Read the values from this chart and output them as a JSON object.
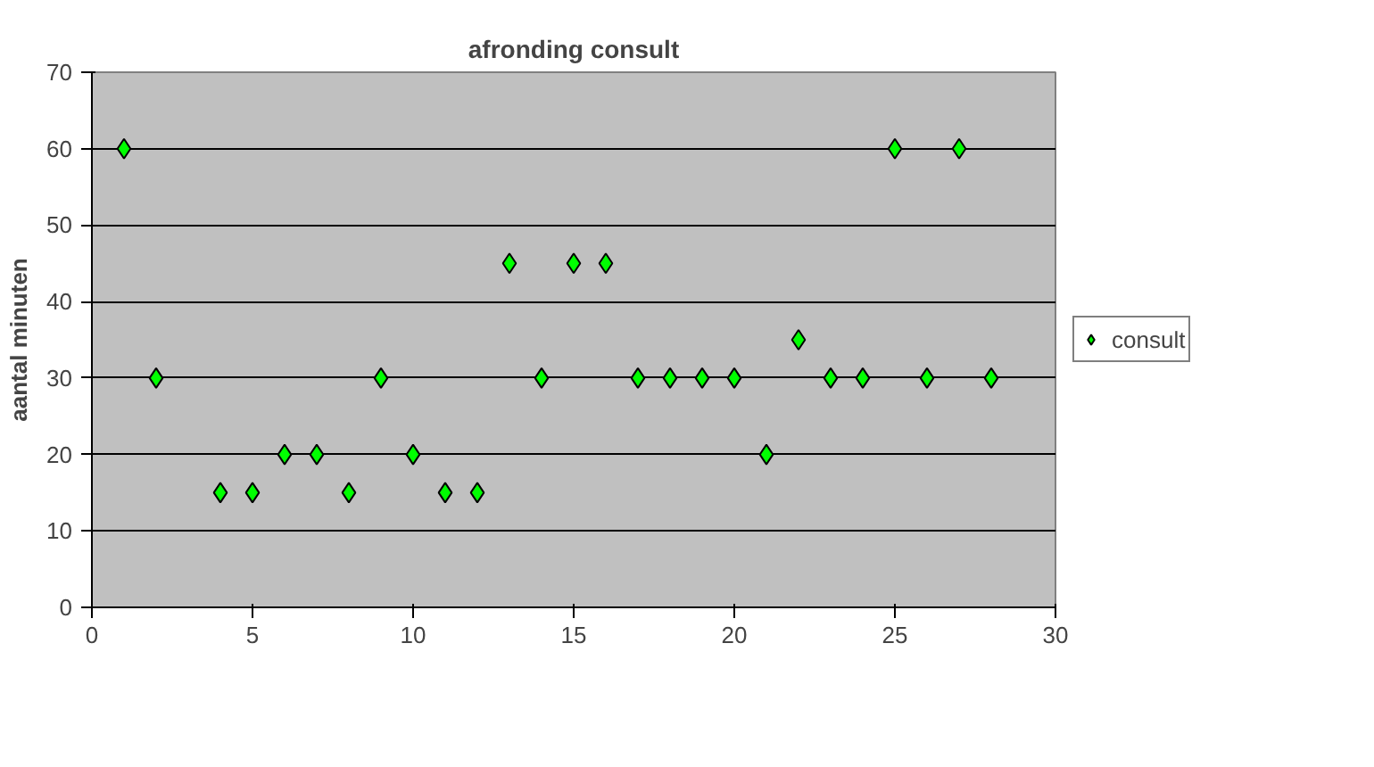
{
  "chart_data": {
    "type": "scatter",
    "title": "afronding consult",
    "ylabel": "aantal minuten",
    "x": [
      1,
      2,
      4,
      5,
      6,
      7,
      8,
      9,
      10,
      11,
      12,
      13,
      14,
      15,
      16,
      17,
      18,
      19,
      20,
      21,
      22,
      23,
      24,
      25,
      26,
      27,
      28
    ],
    "series": [
      {
        "name": "consult",
        "color": "#00ff00",
        "values": [
          60,
          30,
          15,
          15,
          20,
          20,
          15,
          30,
          20,
          15,
          15,
          45,
          30,
          45,
          45,
          30,
          30,
          30,
          30,
          20,
          35,
          30,
          30,
          60,
          30,
          60,
          30
        ]
      }
    ],
    "xlim": [
      0,
      30
    ],
    "xticks": [
      0,
      5,
      10,
      15,
      20,
      25,
      30
    ],
    "ylim": [
      0,
      70
    ],
    "yticks": [
      0,
      10,
      20,
      30,
      40,
      50,
      60,
      70
    ],
    "grid": "y",
    "legend": "right",
    "marker": "diamond"
  }
}
